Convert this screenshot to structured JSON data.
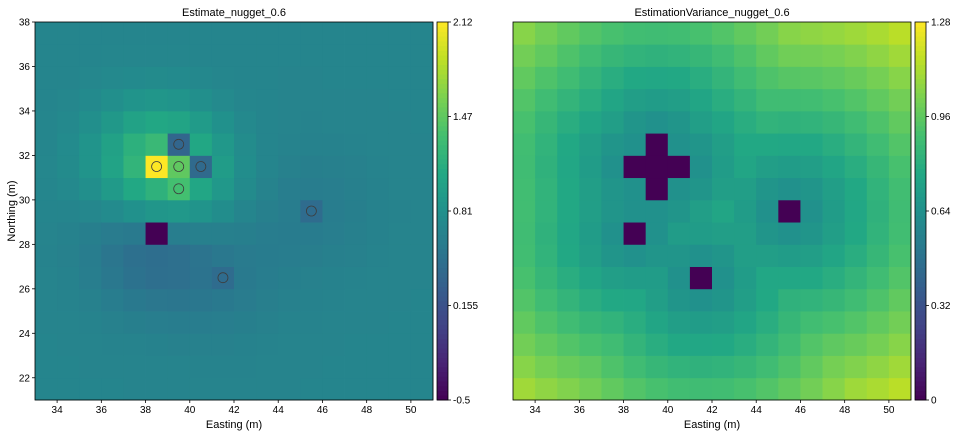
{
  "chart_data": [
    {
      "type": "heatmap",
      "title": "Estimate_nugget_0.6",
      "xlabel": "Easting (m)",
      "ylabel": "Northing (m)",
      "xlim": [
        33,
        51
      ],
      "ylim": [
        21,
        38
      ],
      "xticks": [
        34,
        36,
        38,
        40,
        42,
        44,
        46,
        48,
        50
      ],
      "yticks": [
        22,
        24,
        26,
        28,
        30,
        32,
        34,
        36,
        38
      ],
      "grid": "18x17 cells, 1 m spacing",
      "colormap": "viridis",
      "colorbar": {
        "min": -0.5,
        "max": 2.12,
        "ticks": [
          "-0.5",
          "0.155",
          "0.81",
          "1.47",
          "2.12"
        ]
      },
      "background_value": 0.68,
      "cells": [
        {
          "x": 38.5,
          "y": 31.5,
          "value": 2.12
        },
        {
          "x": 39.5,
          "y": 31.5,
          "value": 1.47
        },
        {
          "x": 39.5,
          "y": 30.5,
          "value": 1.33
        },
        {
          "x": 39.5,
          "y": 32.5,
          "value": 0.36
        },
        {
          "x": 40.5,
          "y": 31.5,
          "value": 0.4
        },
        {
          "x": 38.5,
          "y": 28.5,
          "value": -0.5
        },
        {
          "x": 45.5,
          "y": 29.5,
          "value": 0.42
        },
        {
          "x": 41.5,
          "y": 26.5,
          "value": 0.42
        }
      ],
      "samples": [
        {
          "x": 38.5,
          "y": 31.5
        },
        {
          "x": 39.5,
          "y": 31.5
        },
        {
          "x": 39.5,
          "y": 30.5
        },
        {
          "x": 39.5,
          "y": 32.5
        },
        {
          "x": 40.5,
          "y": 31.5
        },
        {
          "x": 45.5,
          "y": 29.5
        },
        {
          "x": 41.5,
          "y": 26.5
        }
      ]
    },
    {
      "type": "heatmap",
      "title": "EstimationVariance_nugget_0.6",
      "xlabel": "Easting (m)",
      "ylabel": "",
      "xlim": [
        33,
        51
      ],
      "ylim": [
        21,
        38
      ],
      "xticks": [
        34,
        36,
        38,
        40,
        42,
        44,
        46,
        48,
        50
      ],
      "grid": "18x17 cells, 1 m spacing",
      "colormap": "viridis",
      "colorbar": {
        "min": 0,
        "max": 1.28,
        "ticks": [
          "0",
          "0.32",
          "0.64",
          "0.96",
          "1.28"
        ]
      },
      "model": "variance increases with distance from nearest sample; 0 at sample cells",
      "zero_cells": [
        {
          "x": 38.5,
          "y": 31.5
        },
        {
          "x": 39.5,
          "y": 31.5
        },
        {
          "x": 40.5,
          "y": 31.5
        },
        {
          "x": 39.5,
          "y": 32.5
        },
        {
          "x": 39.5,
          "y": 30.5
        },
        {
          "x": 38.5,
          "y": 28.5
        },
        {
          "x": 45.5,
          "y": 29.5
        },
        {
          "x": 41.5,
          "y": 26.5
        }
      ]
    }
  ]
}
